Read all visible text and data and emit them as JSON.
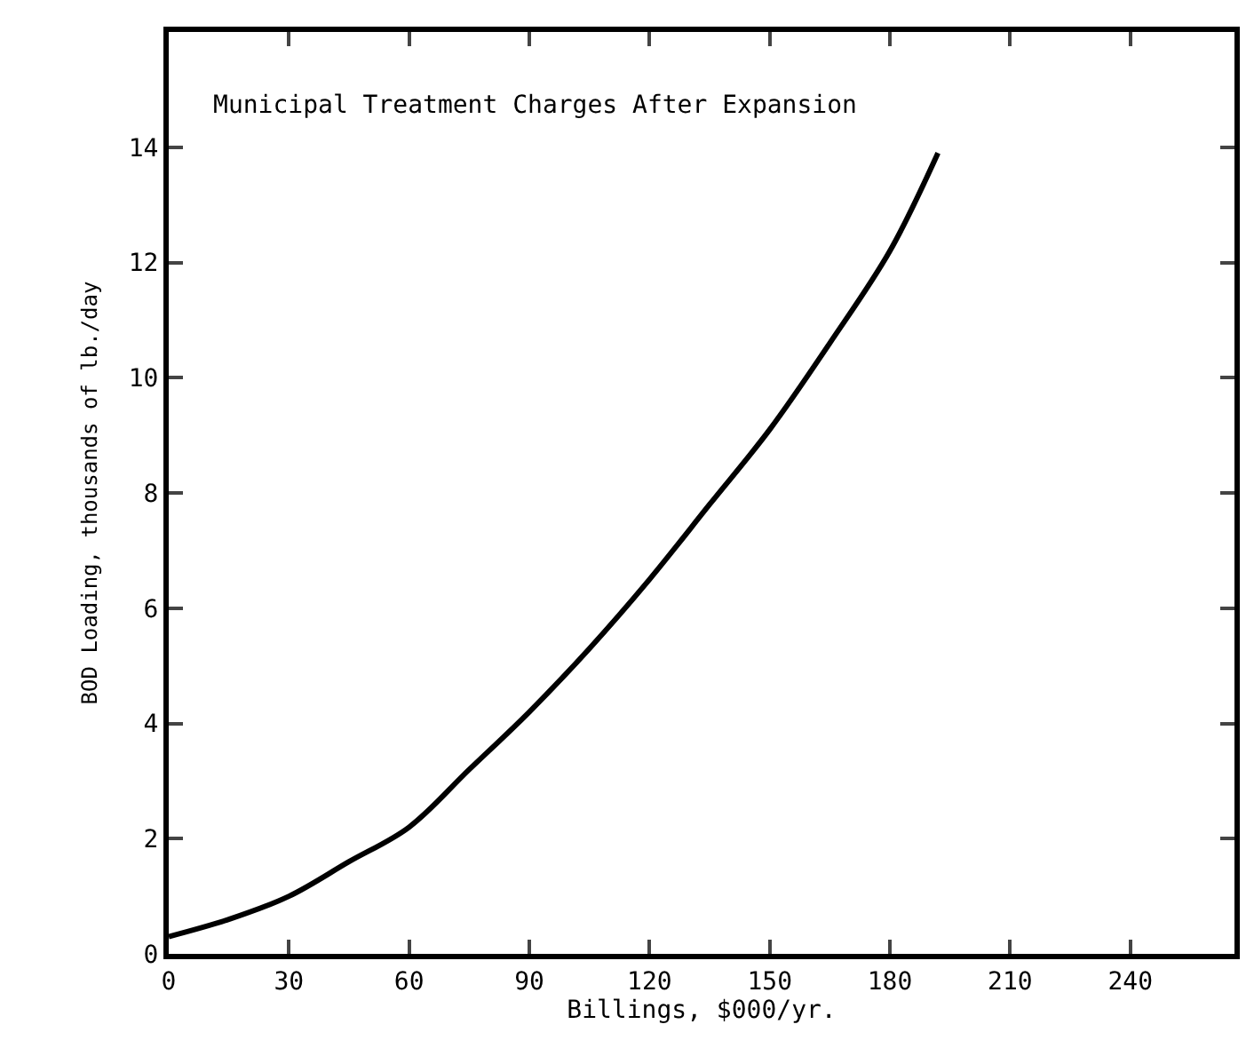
{
  "chart_data": {
    "type": "line",
    "title": "Municipal Treatment Charges After Expansion",
    "xlabel": "Billings, $000/yr.",
    "ylabel": "BOD Loading, thousands of lb./day",
    "x": [
      0,
      15,
      30,
      45,
      60,
      75,
      90,
      105,
      120,
      135,
      150,
      165,
      180,
      192
    ],
    "series": [
      {
        "color": "#000000",
        "values": [
          0.3,
          0.6,
          1.0,
          1.6,
          2.2,
          3.2,
          4.2,
          5.3,
          6.5,
          7.8,
          9.1,
          10.6,
          12.2,
          13.9
        ]
      }
    ],
    "xlim": [
      0,
      266
    ],
    "ylim": [
      0,
      16
    ],
    "xticks": [
      0,
      30,
      60,
      90,
      120,
      150,
      180,
      210,
      240
    ],
    "yticks": [
      0,
      2,
      4,
      6,
      8,
      10,
      12,
      14
    ],
    "legend": false,
    "marker": "none",
    "line_style": "solid"
  }
}
